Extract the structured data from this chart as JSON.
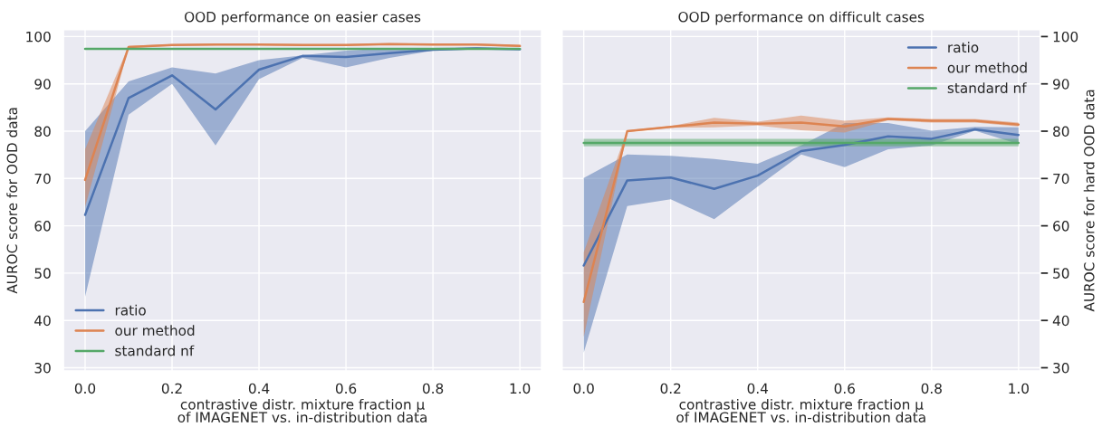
{
  "chart_data": [
    {
      "type": "line",
      "title": "OOD performance on easier cases",
      "xlabel": "contrastive distr. mixture fraction μ\nof IMAGENET vs. in-distribution data",
      "ylabel": "AUROC score for OOD data",
      "x": [
        0,
        0.1,
        0.2,
        0.3,
        0.4,
        0.5,
        0.6,
        0.7,
        0.8,
        0.9,
        1.0
      ],
      "xlim": [
        -0.05,
        1.05
      ],
      "xticks": [
        {
          "value": 0,
          "label": "0.0"
        },
        {
          "value": 0.2,
          "label": "0.2"
        },
        {
          "value": 0.4,
          "label": "0.4"
        },
        {
          "value": 0.6,
          "label": "0.6"
        },
        {
          "value": 0.8,
          "label": "0.8"
        },
        {
          "value": 1.0,
          "label": "1.0"
        }
      ],
      "ylim": [
        29.3,
        101.5
      ],
      "yticks": [
        30,
        40,
        50,
        60,
        70,
        80,
        90,
        100
      ],
      "grid": true,
      "legend": "bottom left",
      "series": [
        {
          "name": "ratio",
          "color": "#4c72b0",
          "values": [
            62.3,
            87,
            91.8,
            84.6,
            93,
            95.9,
            95.7,
            96.5,
            97.2,
            97.5,
            97.3
          ],
          "lower": [
            45,
            83.5,
            90,
            77,
            91,
            95.5,
            93.5,
            95.5,
            97,
            97.3,
            97.2
          ],
          "upper": [
            80,
            90.5,
            93.5,
            92.2,
            95,
            96,
            97,
            97.5,
            97.6,
            97.7,
            97.5
          ]
        },
        {
          "name": "our method",
          "color": "#dd8452",
          "values": [
            69.7,
            97.8,
            98.2,
            98.3,
            98.3,
            98.2,
            98.2,
            98.4,
            98.3,
            98.3,
            98.0
          ],
          "lower": [
            64,
            97.6,
            98.0,
            98.1,
            98.1,
            98.0,
            98.0,
            98.2,
            98.1,
            98.1,
            97.8
          ],
          "upper": [
            76.2,
            98.0,
            98.4,
            98.5,
            98.5,
            98.4,
            98.4,
            98.6,
            98.5,
            98.5,
            98.2
          ]
        },
        {
          "name": "standard nf",
          "color": "#55a868",
          "values": [
            97.4,
            97.4,
            97.4,
            97.4,
            97.4,
            97.4,
            97.4,
            97.4,
            97.4,
            97.4,
            97.4
          ]
        }
      ]
    },
    {
      "type": "line",
      "title": "OOD performance on difficult cases",
      "xlabel": "contrastive distr. mixture fraction μ\nof IMAGENET vs. in-distribution data",
      "y2label": "AUROC score for hard OOD data",
      "x": [
        0,
        0.1,
        0.2,
        0.3,
        0.4,
        0.5,
        0.6,
        0.7,
        0.8,
        0.9,
        1.0
      ],
      "xlim": [
        -0.05,
        1.05
      ],
      "xticks": [
        {
          "value": 0,
          "label": "0.0"
        },
        {
          "value": 0.2,
          "label": "0.2"
        },
        {
          "value": 0.4,
          "label": "0.4"
        },
        {
          "value": 0.6,
          "label": "0.6"
        },
        {
          "value": 0.8,
          "label": "0.8"
        },
        {
          "value": 1.0,
          "label": "1.0"
        }
      ],
      "y2lim": [
        29.3,
        101.5
      ],
      "y2ticks": [
        30,
        40,
        50,
        60,
        70,
        80,
        90,
        100
      ],
      "grid": true,
      "legend": "top right",
      "series": [
        {
          "name": "ratio",
          "color": "#4c72b0",
          "axis": "y2",
          "values": [
            51.6,
            69.6,
            70.2,
            67.8,
            70.6,
            75.8,
            77.1,
            78.9,
            78.4,
            80.4,
            79.2
          ],
          "lower": [
            33.2,
            64.2,
            65.6,
            61.4,
            68.3,
            75.1,
            72.4,
            76.2,
            77,
            80.1,
            77.3
          ],
          "upper": [
            70.1,
            75.1,
            74.8,
            74.1,
            73.1,
            77,
            81.7,
            81.7,
            80.1,
            80.9,
            80.8
          ]
        },
        {
          "name": "our method",
          "color": "#dd8452",
          "axis": "y2",
          "values": [
            43.9,
            80.0,
            80.9,
            81.8,
            81.6,
            81.8,
            81.0,
            82.6,
            82.2,
            82.2,
            81.4
          ],
          "lower": [
            36.5,
            79.8,
            80.7,
            80.8,
            81.2,
            80.2,
            79.7,
            82.3,
            81.8,
            81.8,
            81.0
          ],
          "upper": [
            54.4,
            80.2,
            81.1,
            82.8,
            82.0,
            83.3,
            82.2,
            82.9,
            82.6,
            82.6,
            81.8
          ]
        },
        {
          "name": "standard nf",
          "color": "#55a868",
          "axis": "y2",
          "values": [
            77.5,
            77.5,
            77.5,
            77.5,
            77.5,
            77.5,
            77.5,
            77.5,
            77.5,
            77.5,
            77.5
          ],
          "lower": [
            76.8,
            76.8,
            76.8,
            76.8,
            76.8,
            76.8,
            76.8,
            76.8,
            76.8,
            76.8,
            76.8
          ],
          "upper": [
            78.4,
            78.4,
            78.4,
            78.4,
            78.4,
            78.4,
            78.4,
            78.4,
            78.4,
            78.4,
            78.4
          ]
        }
      ]
    }
  ]
}
